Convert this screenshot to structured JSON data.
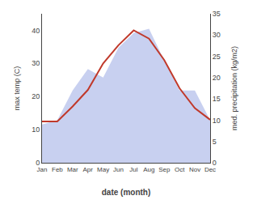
{
  "chart_data": {
    "type": "line",
    "xlabel": "date (month)",
    "ylabel": "max temp (C)",
    "y2label": "med. precipitation (kg/m2)",
    "categories": [
      "Jan",
      "Feb",
      "Mar",
      "Apr",
      "May",
      "Jun",
      "Jul",
      "Aug",
      "Sep",
      "Oct",
      "Nov",
      "Dec"
    ],
    "series": [
      {
        "type": "area",
        "color": "#c8d0f0",
        "axis": "y2",
        "values": [
          9.0,
          10.0,
          17.0,
          22.0,
          20.0,
          27.0,
          30.5,
          31.5,
          24.0,
          17.0,
          17.0,
          10.0
        ]
      },
      {
        "type": "line",
        "color": "#c0392b",
        "values": [
          12.5,
          12.5,
          17.0,
          22.0,
          30.0,
          35.5,
          40.0,
          37.5,
          31.0,
          22.5,
          16.5,
          13.0
        ]
      }
    ],
    "ylim": [
      0,
      45
    ],
    "yticks": [
      0,
      10,
      20,
      30,
      40
    ],
    "y2lim": [
      0,
      35
    ],
    "y2ticks": [
      0,
      5,
      10,
      15,
      20,
      25,
      30,
      35
    ],
    "grid": false
  }
}
